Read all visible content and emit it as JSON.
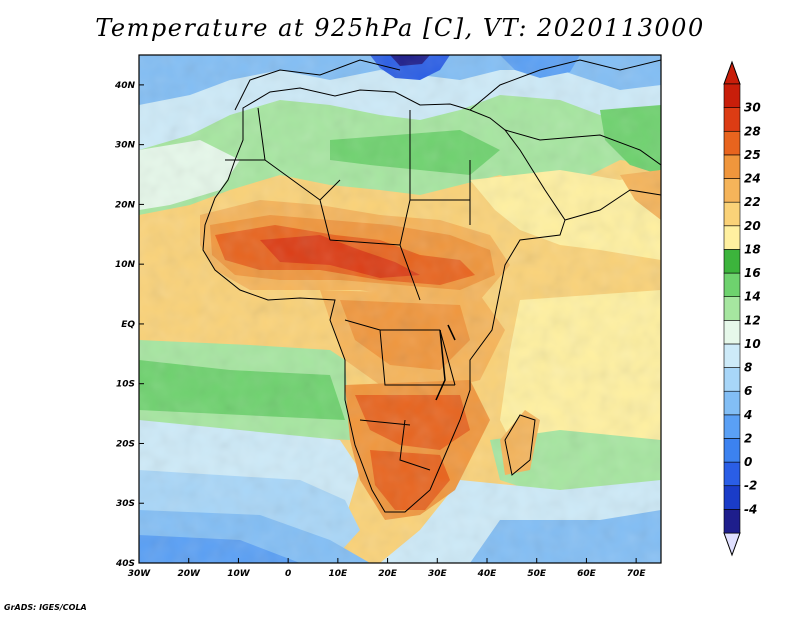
{
  "title": "Temperature at 925hPa [C], VT: 2020113000",
  "credit": "GrADS: IGES/COLA",
  "map": {
    "lon_range": [
      -30,
      75
    ],
    "lat_range": [
      -40,
      45
    ],
    "lon_ticks": [
      {
        "value": -30,
        "label": "30W"
      },
      {
        "value": -20,
        "label": "20W"
      },
      {
        "value": -10,
        "label": "10W"
      },
      {
        "value": 0,
        "label": "0"
      },
      {
        "value": 10,
        "label": "10E"
      },
      {
        "value": 20,
        "label": "20E"
      },
      {
        "value": 30,
        "label": "30E"
      },
      {
        "value": 40,
        "label": "40E"
      },
      {
        "value": 50,
        "label": "50E"
      },
      {
        "value": 60,
        "label": "60E"
      },
      {
        "value": 70,
        "label": "70E"
      }
    ],
    "lat_ticks": [
      {
        "value": 40,
        "label": "40N"
      },
      {
        "value": 30,
        "label": "30N"
      },
      {
        "value": 20,
        "label": "20N"
      },
      {
        "value": 10,
        "label": "10N"
      },
      {
        "value": 0,
        "label": "EQ"
      },
      {
        "value": -10,
        "label": "10S"
      },
      {
        "value": -20,
        "label": "20S"
      },
      {
        "value": -30,
        "label": "30S"
      },
      {
        "value": -40,
        "label": "40S"
      }
    ]
  },
  "colorbar": {
    "labels": [
      "-4",
      "-2",
      "0",
      "2",
      "4",
      "6",
      "8",
      "10",
      "12",
      "14",
      "16",
      "18",
      "20",
      "22",
      "24",
      "25",
      "28",
      "30"
    ],
    "colors": [
      "#1e1e8c",
      "#1a3cc8",
      "#2a5ee6",
      "#3c82f0",
      "#5aa0f5",
      "#82bef5",
      "#a8d6f8",
      "#cdeaf8",
      "#e6f8ea",
      "#a6e6a0",
      "#6ed26e",
      "#3cb43c",
      "#fff0a0",
      "#fad278",
      "#f5b45a",
      "#f0963c",
      "#e8641e",
      "#dc3c14",
      "#c81e0a"
    ],
    "under_color": "#e0e0ff",
    "over_color": "#c81e0a"
  }
}
